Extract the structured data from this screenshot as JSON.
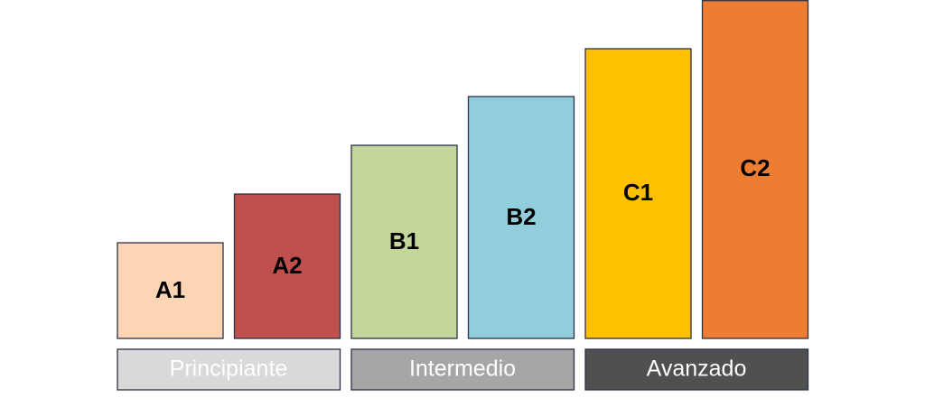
{
  "levels": [
    "A1",
    "A2",
    "B1",
    "B2",
    "C1",
    "C2"
  ],
  "groups": [
    "Principiante",
    "Intermedio",
    "Avanzado"
  ]
}
